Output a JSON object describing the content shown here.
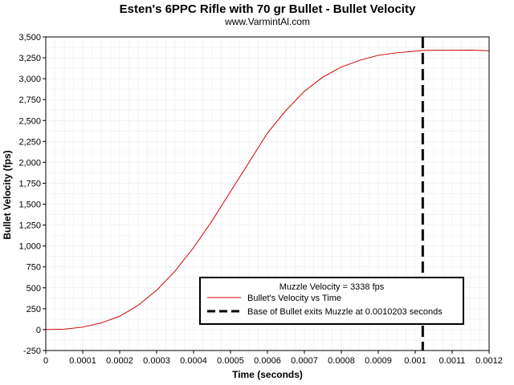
{
  "chart_data": {
    "type": "line",
    "title": "Esten's 6PPC Rifle with 70 gr Bullet - Bullet Velocity",
    "subtitle": "www.VarmintAl.com",
    "xlabel": "Time (seconds)",
    "ylabel": "Bullet Velocity (fps)",
    "xlim": [
      0,
      0.0012
    ],
    "ylim": [
      -250,
      3500
    ],
    "x_ticks": [
      0,
      0.0001,
      0.0002,
      0.0003,
      0.0004,
      0.0005,
      0.0006,
      0.0007,
      0.0008,
      0.0009,
      0.001,
      0.0011,
      0.0012
    ],
    "x_tick_labels": [
      "0",
      "0.0001",
      "0.0002",
      "0.0003",
      "0.0004",
      "0.0005",
      "0.0006",
      "0.0007",
      "0.0008",
      "0.0009",
      "0.001",
      "0.0011",
      "0.0012"
    ],
    "y_ticks": [
      -250,
      0,
      250,
      500,
      750,
      1000,
      1250,
      1500,
      1750,
      2000,
      2250,
      2500,
      2750,
      3000,
      3250,
      3500
    ],
    "y_tick_labels": [
      "-250",
      "0",
      "250",
      "500",
      "750",
      "1,000",
      "1,250",
      "1,500",
      "1,750",
      "2,000",
      "2,250",
      "2,500",
      "2,750",
      "3,000",
      "3,250",
      "3,500"
    ],
    "grid": true,
    "legend_position": "bottom-right",
    "series": [
      {
        "name": "Bullet's Velocity vs Time",
        "color": "#cc0000",
        "style": "solid",
        "x": [
          0,
          5e-05,
          0.0001,
          0.00015,
          0.0002,
          0.00025,
          0.0003,
          0.00035,
          0.0004,
          0.00045,
          0.0005,
          0.00055,
          0.0006,
          0.00065,
          0.0007,
          0.00075,
          0.0008,
          0.00085,
          0.0009,
          0.00095,
          0.001,
          0.00102,
          0.00105,
          0.0011,
          0.00115,
          0.0012
        ],
        "y": [
          0,
          5,
          30,
          80,
          160,
          290,
          470,
          700,
          980,
          1300,
          1650,
          2000,
          2350,
          2620,
          2850,
          3020,
          3140,
          3220,
          3280,
          3310,
          3330,
          3338,
          3340,
          3340,
          3342,
          3335
        ]
      }
    ],
    "vlines": [
      {
        "name": "Base of Bullet exits Muzzle at 0.0010203 seconds",
        "x": 0.0010203,
        "color": "#000000",
        "style": "dashed"
      }
    ],
    "annotations": [
      {
        "text": "Muzzle Velocity = 3338 fps"
      }
    ]
  }
}
